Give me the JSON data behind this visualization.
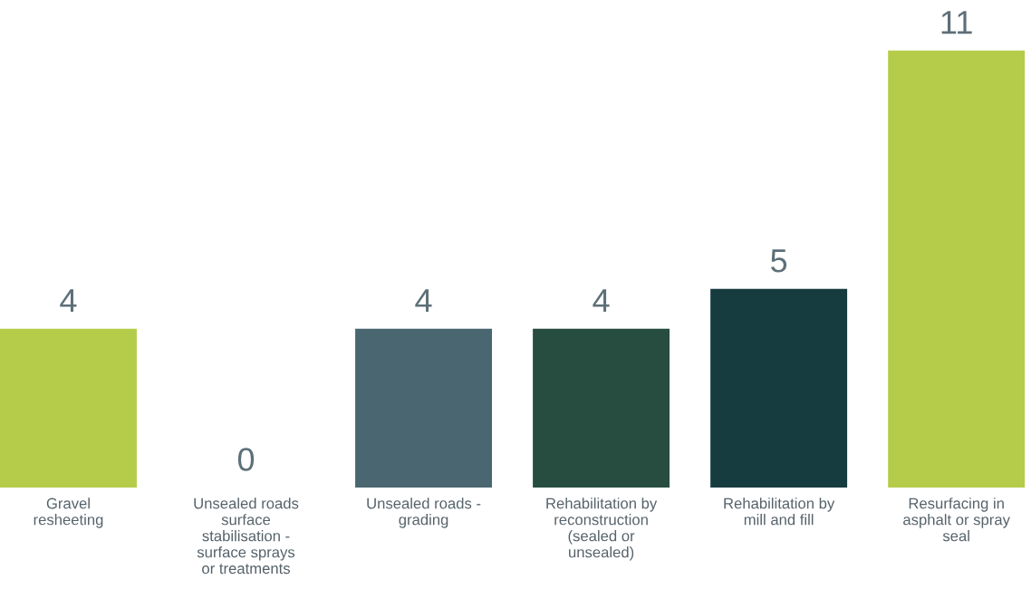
{
  "chart_data": {
    "type": "bar",
    "categories": [
      "Gravel\nresheeting",
      "Unsealed roads\nsurface\nstabilisation -\nsurface sprays\nor treatments",
      "Unsealed roads -\ngrading",
      "Rehabilitation by\nreconstruction\n(sealed or\nunsealed)",
      "Rehabilitation by\nmill and fill",
      "Resurfacing in\nasphalt or spray\nseal"
    ],
    "values": [
      4,
      0,
      4,
      4,
      5,
      11
    ],
    "colors": [
      "#b5cc4a",
      "#b5cc4a",
      "#4a6670",
      "#264d40",
      "#173c40",
      "#b5cc4a"
    ],
    "data_labels": true,
    "grid": false,
    "legend": false
  }
}
